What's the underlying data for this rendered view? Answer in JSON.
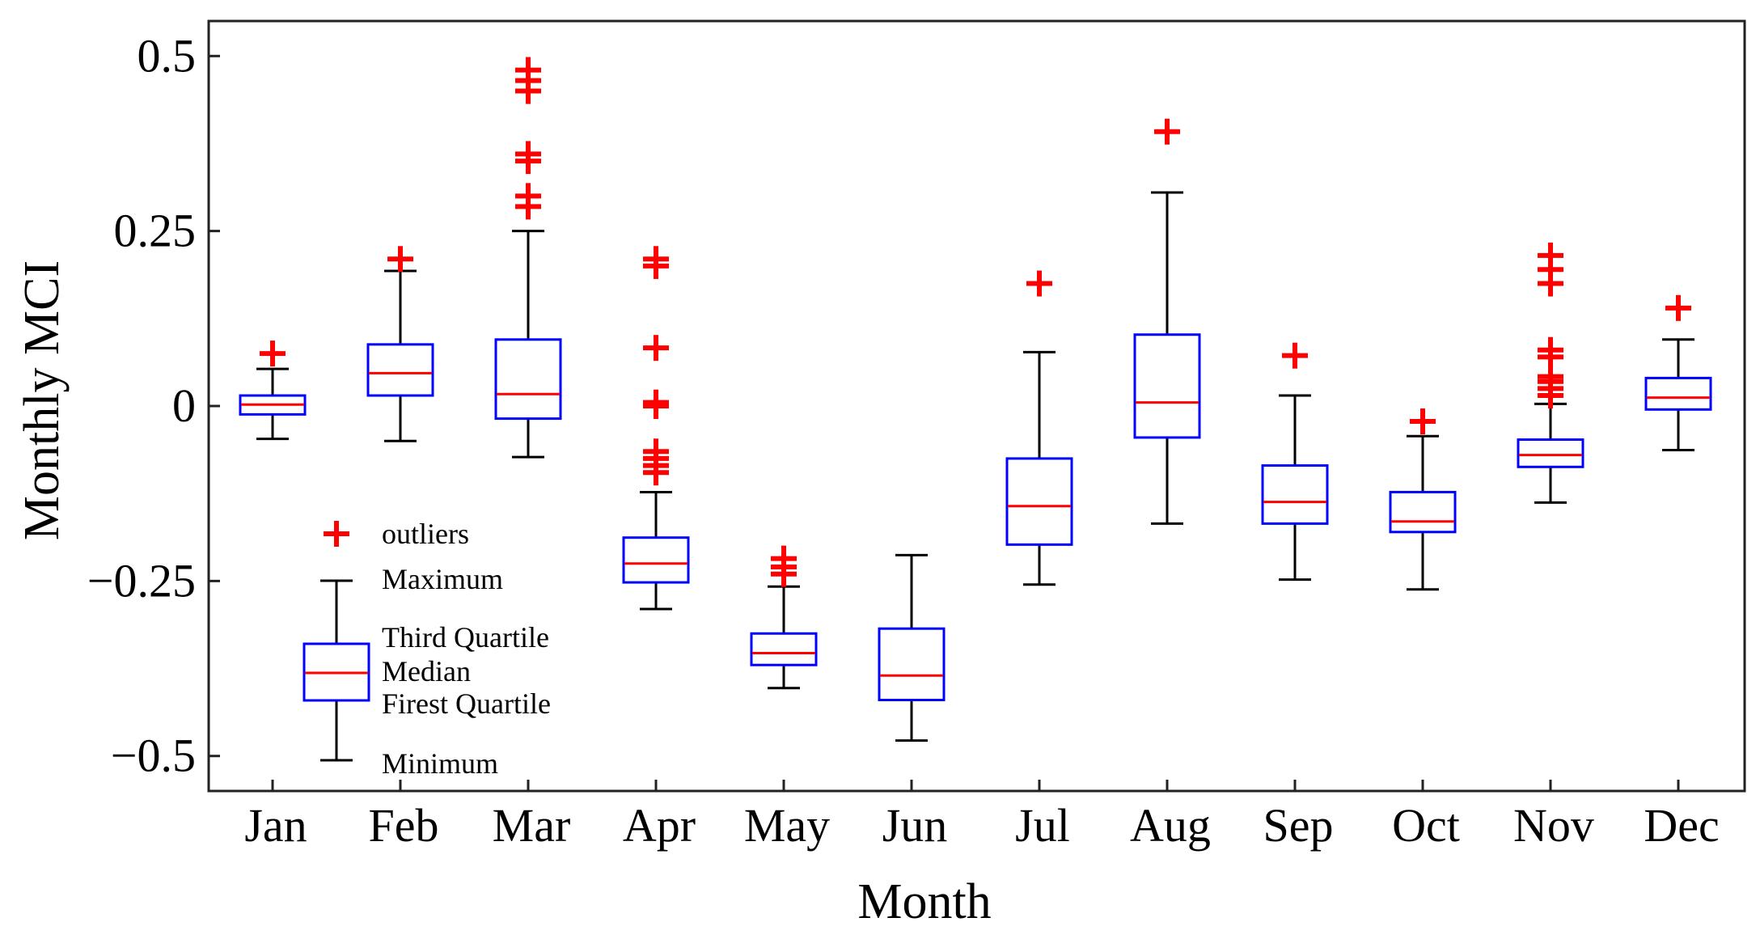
{
  "chart_data": {
    "type": "boxplot",
    "title": "",
    "xlabel": "Month",
    "ylabel": "Monthly MCI",
    "ylim": [
      -0.55,
      0.55
    ],
    "yticks": [
      {
        "value": 0.5,
        "label": "0.5"
      },
      {
        "value": 0.25,
        "label": "0.25"
      },
      {
        "value": 0,
        "label": "0"
      },
      {
        "value": -0.25,
        "label": "−0.25"
      },
      {
        "value": -0.5,
        "label": "−0.5"
      }
    ],
    "categories": [
      "Jan",
      "Feb",
      "Mar",
      "Apr",
      "May",
      "Jun",
      "Jul",
      "Aug",
      "Sep",
      "Oct",
      "Nov",
      "Dec"
    ],
    "boxes": [
      {
        "min": -0.047,
        "q1": -0.012,
        "median": 0.002,
        "q3": 0.015,
        "max": 0.053,
        "outliers": [
          0.075
        ]
      },
      {
        "min": -0.05,
        "q1": 0.015,
        "median": 0.047,
        "q3": 0.088,
        "max": 0.193,
        "outliers": [
          0.21
        ]
      },
      {
        "min": -0.073,
        "q1": -0.018,
        "median": 0.017,
        "q3": 0.095,
        "max": 0.25,
        "outliers": [
          0.285,
          0.3,
          0.35,
          0.36,
          0.45,
          0.465,
          0.48
        ]
      },
      {
        "min": -0.29,
        "q1": -0.252,
        "median": -0.225,
        "q3": -0.188,
        "max": -0.123,
        "outliers": [
          -0.095,
          -0.085,
          -0.075,
          -0.065,
          0.0,
          0.005,
          0.083,
          0.2,
          0.21
        ]
      },
      {
        "min": -0.403,
        "q1": -0.37,
        "median": -0.353,
        "q3": -0.325,
        "max": -0.258,
        "outliers": [
          -0.24,
          -0.23,
          -0.218
        ]
      },
      {
        "min": -0.478,
        "q1": -0.42,
        "median": -0.385,
        "q3": -0.318,
        "max": -0.213,
        "outliers": []
      },
      {
        "min": -0.255,
        "q1": -0.198,
        "median": -0.143,
        "q3": -0.075,
        "max": 0.077,
        "outliers": [
          0.175
        ]
      },
      {
        "min": -0.168,
        "q1": -0.045,
        "median": 0.005,
        "q3": 0.102,
        "max": 0.305,
        "outliers": [
          0.392
        ]
      },
      {
        "min": -0.248,
        "q1": -0.168,
        "median": -0.137,
        "q3": -0.085,
        "max": 0.015,
        "outliers": [
          0.072
        ]
      },
      {
        "min": -0.262,
        "q1": -0.18,
        "median": -0.165,
        "q3": -0.123,
        "max": -0.043,
        "outliers": [
          -0.022
        ]
      },
      {
        "min": -0.138,
        "q1": -0.087,
        "median": -0.07,
        "q3": -0.048,
        "max": 0.003,
        "outliers": [
          0.015,
          0.025,
          0.035,
          0.042,
          0.07,
          0.08,
          0.175,
          0.195,
          0.215
        ]
      },
      {
        "min": -0.063,
        "q1": -0.005,
        "median": 0.012,
        "q3": 0.04,
        "max": 0.095,
        "outliers": [
          0.14
        ]
      }
    ],
    "legend": {
      "outliers": "outliers",
      "maximum": "Maximum",
      "third_quartile": "Third Quartile",
      "median": "Median",
      "first_quartile": "Firest Quartile",
      "minimum": "Minimum"
    },
    "colors": {
      "box": "#0000ff",
      "median": "#ff0000",
      "whisker": "#000000",
      "outlier": "#ff0000",
      "axis": "#222222"
    }
  }
}
